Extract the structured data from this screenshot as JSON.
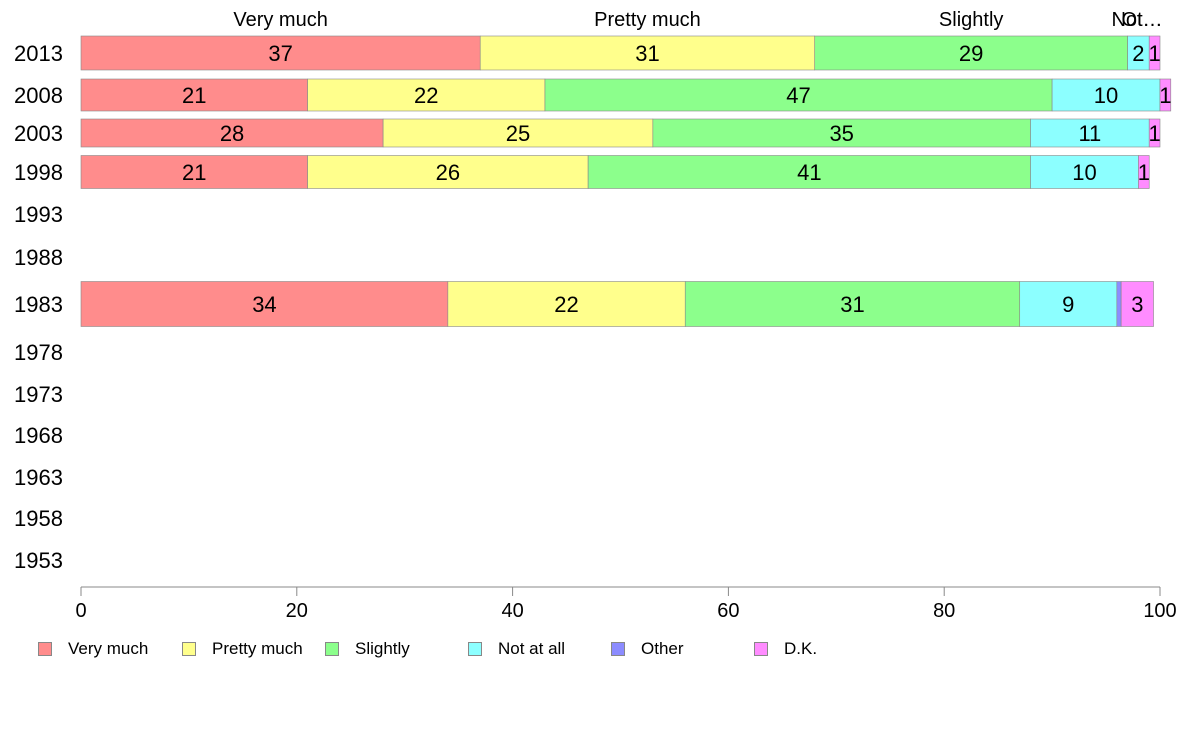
{
  "chart_data": {
    "type": "bar",
    "orientation": "horizontal",
    "stacked": true,
    "categories": [
      "2013",
      "2008",
      "2003",
      "1998",
      "1993",
      "1988",
      "1983",
      "1978",
      "1973",
      "1968",
      "1963",
      "1958",
      "1953"
    ],
    "series": [
      {
        "name": "Very much",
        "color": "#ff8c8c",
        "values": [
          37,
          21,
          28,
          21,
          null,
          null,
          34,
          null,
          null,
          null,
          null,
          null,
          null
        ]
      },
      {
        "name": "Pretty much",
        "color": "#ffff8c",
        "values": [
          31,
          22,
          25,
          26,
          null,
          null,
          22,
          null,
          null,
          null,
          null,
          null,
          null
        ]
      },
      {
        "name": "Slightly",
        "color": "#8cff8c",
        "values": [
          29,
          47,
          35,
          41,
          null,
          null,
          31,
          null,
          null,
          null,
          null,
          null,
          null
        ]
      },
      {
        "name": "Not at all",
        "color": "#8cffff",
        "values": [
          2,
          10,
          11,
          10,
          null,
          null,
          9,
          null,
          null,
          null,
          null,
          null,
          null
        ]
      },
      {
        "name": "Other",
        "color": "#8c8cff",
        "values": [
          0,
          0,
          0,
          0,
          null,
          null,
          0.4,
          null,
          null,
          null,
          null,
          null,
          null
        ]
      },
      {
        "name": "D.K.",
        "color": "#ff8cff",
        "values": [
          1,
          1,
          1,
          1,
          null,
          null,
          3,
          null,
          null,
          null,
          null,
          null,
          null
        ]
      }
    ],
    "data_labels": {
      "2013": [
        "37",
        "31",
        "29",
        "2",
        "",
        "1"
      ],
      "2008": [
        "21",
        "22",
        "47",
        "10",
        "",
        "1"
      ],
      "2003": [
        "28",
        "25",
        "35",
        "11",
        "",
        "1"
      ],
      "1998": [
        "21",
        "26",
        "41",
        "10",
        "",
        "1"
      ],
      "1983": [
        "34",
        "22",
        "31",
        "9",
        "",
        "3"
      ]
    },
    "top_labels": [
      "Very much",
      "Pretty much",
      "Slightly",
      "Not…",
      "Ot…"
    ],
    "xlim": [
      0,
      100
    ],
    "x_ticks": [
      0,
      20,
      40,
      60,
      80,
      100
    ],
    "xlabel": "",
    "ylabel": "",
    "title": "",
    "grid": false,
    "legend_position": "bottom"
  },
  "legend": {
    "items": [
      {
        "label": "Very much",
        "color": "#ff8c8c"
      },
      {
        "label": "Pretty much",
        "color": "#ffff8c"
      },
      {
        "label": "Slightly",
        "color": "#8cff8c"
      },
      {
        "label": "Not at all",
        "color": "#8cffff"
      },
      {
        "label": "Other",
        "color": "#8c8cff"
      },
      {
        "label": "D.K.",
        "color": "#ff8cff"
      }
    ]
  }
}
